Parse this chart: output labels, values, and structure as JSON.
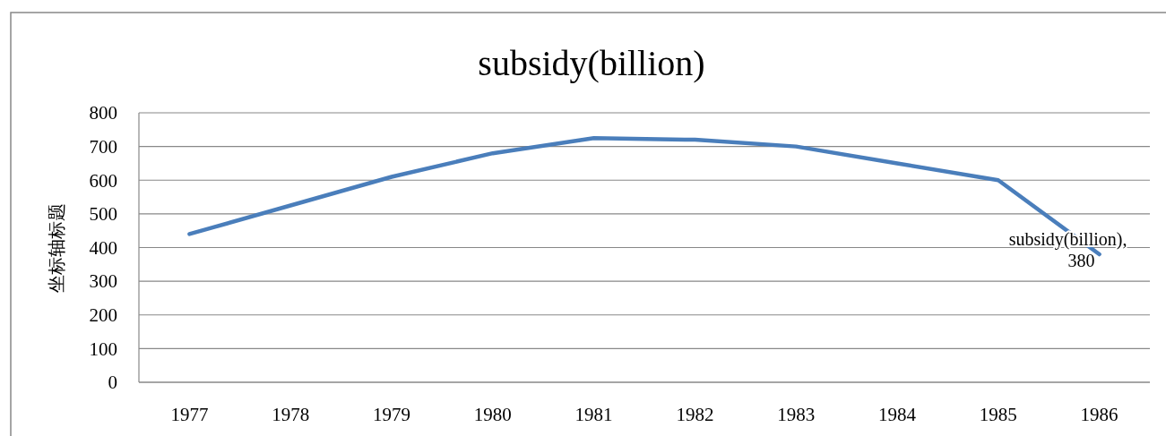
{
  "chart_data": {
    "type": "line",
    "title": "subsidy(billion)",
    "ylabel": "坐标轴标题",
    "categories": [
      "1977",
      "1978",
      "1979",
      "1980",
      "1981",
      "1982",
      "1983",
      "1984",
      "1985",
      "1986"
    ],
    "series": [
      {
        "color": "#4a7ebb",
        "values": [
          440,
          525,
          610,
          680,
          725,
          720,
          700,
          650,
          600,
          380
        ]
      }
    ],
    "ylim": [
      0,
      800
    ],
    "yticks": [
      0,
      100,
      200,
      300,
      400,
      500,
      600,
      700,
      800
    ],
    "grid": "y",
    "marker": "none",
    "line_style": "solid",
    "annotations": [
      {
        "text": "subsidy(billion), 380",
        "x": "1986",
        "y": 380
      }
    ]
  }
}
